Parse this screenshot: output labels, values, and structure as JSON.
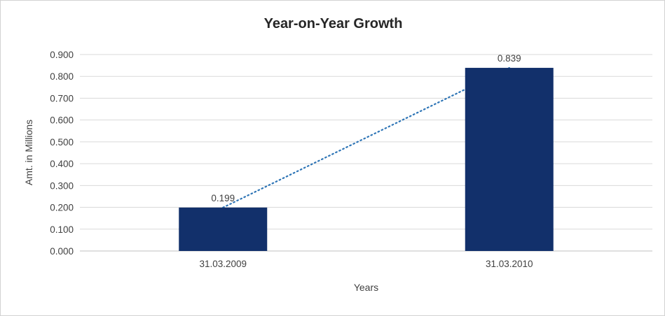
{
  "chart": {
    "title": "Year-on-Year Growth",
    "xlabel": "Years",
    "ylabel": "Amt. in Millions"
  },
  "chart_data": {
    "type": "bar",
    "title": "Year-on-Year Growth",
    "categories": [
      "31.03.2009",
      "31.03.2010"
    ],
    "values": [
      0.199,
      0.839
    ],
    "data_labels": [
      "0.199",
      "0.839"
    ],
    "xlabel": "Years",
    "ylabel": "Amt. in Millions",
    "ylim": [
      0,
      0.9
    ],
    "ytick_step": 0.1,
    "ytick_labels": [
      "0.000",
      "0.100",
      "0.200",
      "0.300",
      "0.400",
      "0.500",
      "0.600",
      "0.700",
      "0.800",
      "0.900"
    ],
    "grid": true,
    "legend": "none",
    "bar_color": "#12306B",
    "trendline": {
      "style": "dotted",
      "color": "#2E75B6",
      "from": 0.199,
      "to": 0.839
    },
    "gridline_color": "#d9d9d9",
    "axis_line_color": "#bfbfbf",
    "text_color": "#404040"
  }
}
